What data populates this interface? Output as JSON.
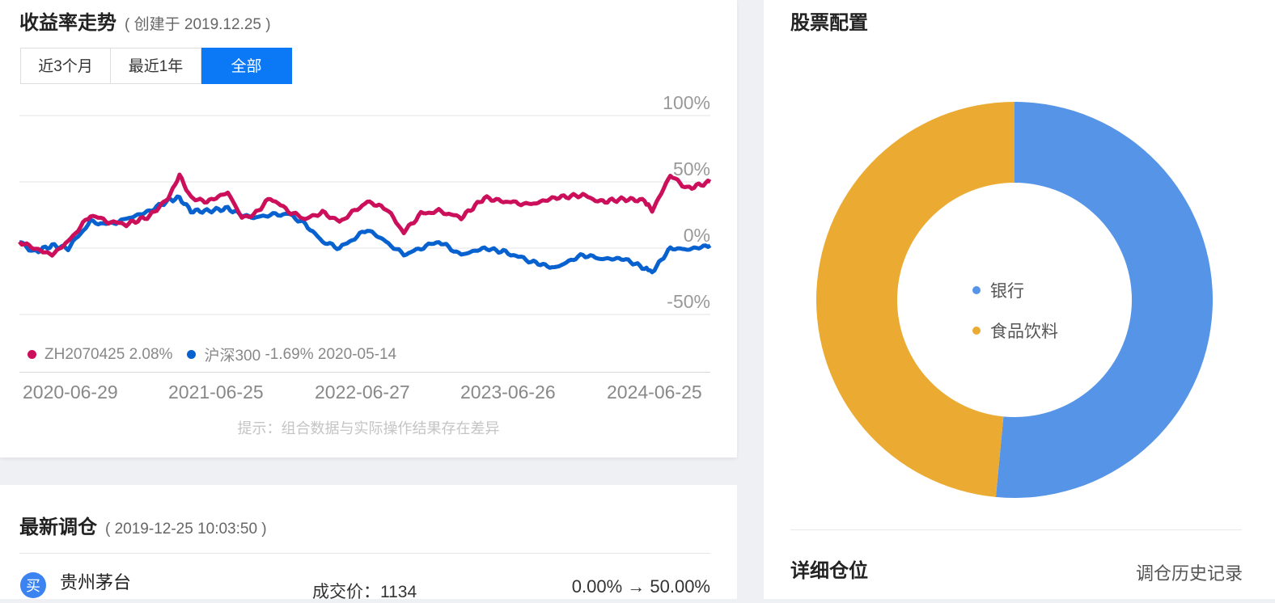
{
  "returns": {
    "title": "收益率走势",
    "created": "( 创建于 2019.12.25 )",
    "tabs": [
      "近3个月",
      "最近1年",
      "全部"
    ],
    "active_tab": 2,
    "hint": "提示：组合数据与实际操作结果存在差异"
  },
  "chart_data": {
    "type": "line",
    "y_ticks": [
      "100%",
      "50%",
      "0%",
      "-50%"
    ],
    "ylim": [
      -50,
      100
    ],
    "x_tick_labels": [
      "2020-06-29",
      "2021-06-25",
      "2022-06-27",
      "2023-06-26",
      "2024-06-25"
    ],
    "series": [
      {
        "name": "ZH2070425",
        "legend_value": "2.08%",
        "color": "#cc0f5a",
        "x": [
          "2019-12-25",
          "2020-02-01",
          "2020-03-20",
          "2020-05-01",
          "2020-06-29",
          "2020-08-15",
          "2020-10-01",
          "2020-12-01",
          "2021-01-20",
          "2021-02-18",
          "2021-03-20",
          "2021-05-01",
          "2021-06-25",
          "2021-08-01",
          "2021-09-01",
          "2021-10-15",
          "2021-12-01",
          "2022-01-15",
          "2022-03-01",
          "2022-04-15",
          "2022-06-27",
          "2022-08-15",
          "2022-10-01",
          "2022-11-15",
          "2023-01-01",
          "2023-03-01",
          "2023-05-01",
          "2023-06-26",
          "2023-09-01",
          "2023-11-01",
          "2024-01-15",
          "2024-03-01",
          "2024-05-01",
          "2024-06-25",
          "2024-07-15",
          "2024-09-01",
          "2024-10-15",
          "2024-12-15"
        ],
        "values": [
          5,
          0,
          -5,
          5,
          25,
          20,
          18,
          24,
          38,
          55,
          38,
          35,
          42,
          23,
          25,
          38,
          28,
          22,
          27,
          20,
          35,
          30,
          12,
          26,
          28,
          23,
          38,
          35,
          33,
          38,
          40,
          35,
          37,
          36,
          28,
          55,
          45,
          50
        ]
      },
      {
        "name": "沪深300",
        "legend_value": "-1.69%",
        "color": "#0761cf",
        "x": [
          "2019-12-25",
          "2020-02-01",
          "2020-03-20",
          "2020-05-01",
          "2020-06-29",
          "2020-08-15",
          "2020-10-01",
          "2020-12-01",
          "2021-01-20",
          "2021-02-18",
          "2021-03-20",
          "2021-05-01",
          "2021-06-25",
          "2021-08-01",
          "2021-09-01",
          "2021-10-15",
          "2021-12-01",
          "2022-01-15",
          "2022-03-01",
          "2022-04-15",
          "2022-06-27",
          "2022-08-15",
          "2022-10-01",
          "2022-11-15",
          "2023-01-01",
          "2023-03-01",
          "2023-05-01",
          "2023-06-26",
          "2023-09-01",
          "2023-11-01",
          "2024-01-15",
          "2024-03-01",
          "2024-05-01",
          "2024-06-25",
          "2024-07-15",
          "2024-09-01",
          "2024-10-15",
          "2024-12-15"
        ],
        "values": [
          5,
          -3,
          2,
          0,
          20,
          18,
          22,
          28,
          36,
          38,
          28,
          28,
          30,
          25,
          23,
          25,
          26,
          18,
          5,
          0,
          14,
          5,
          -5,
          0,
          5,
          -5,
          0,
          -3,
          -10,
          -15,
          -5,
          -8,
          -8,
          -15,
          -18,
          0,
          -1,
          2
        ]
      }
    ],
    "legend_date": "2020-05-14",
    "grid": true
  },
  "rebalance": {
    "title": "最新调仓",
    "time": "( 2019-12-25 10:03:50 )",
    "badge": "买",
    "stock_name": "贵州茅台",
    "deal_price_label": "成交价：1134",
    "weight_change": "0.00% → 50.00%"
  },
  "allocation": {
    "title": "股票配置",
    "pie": {
      "type": "pie",
      "categories": [
        "银行",
        "食品饮料"
      ],
      "values": [
        51.5,
        48.5
      ],
      "colors": [
        "#5594e6",
        "#ebab32"
      ]
    },
    "detail_title": "详细仓位",
    "history_link": "调仓历史记录"
  }
}
